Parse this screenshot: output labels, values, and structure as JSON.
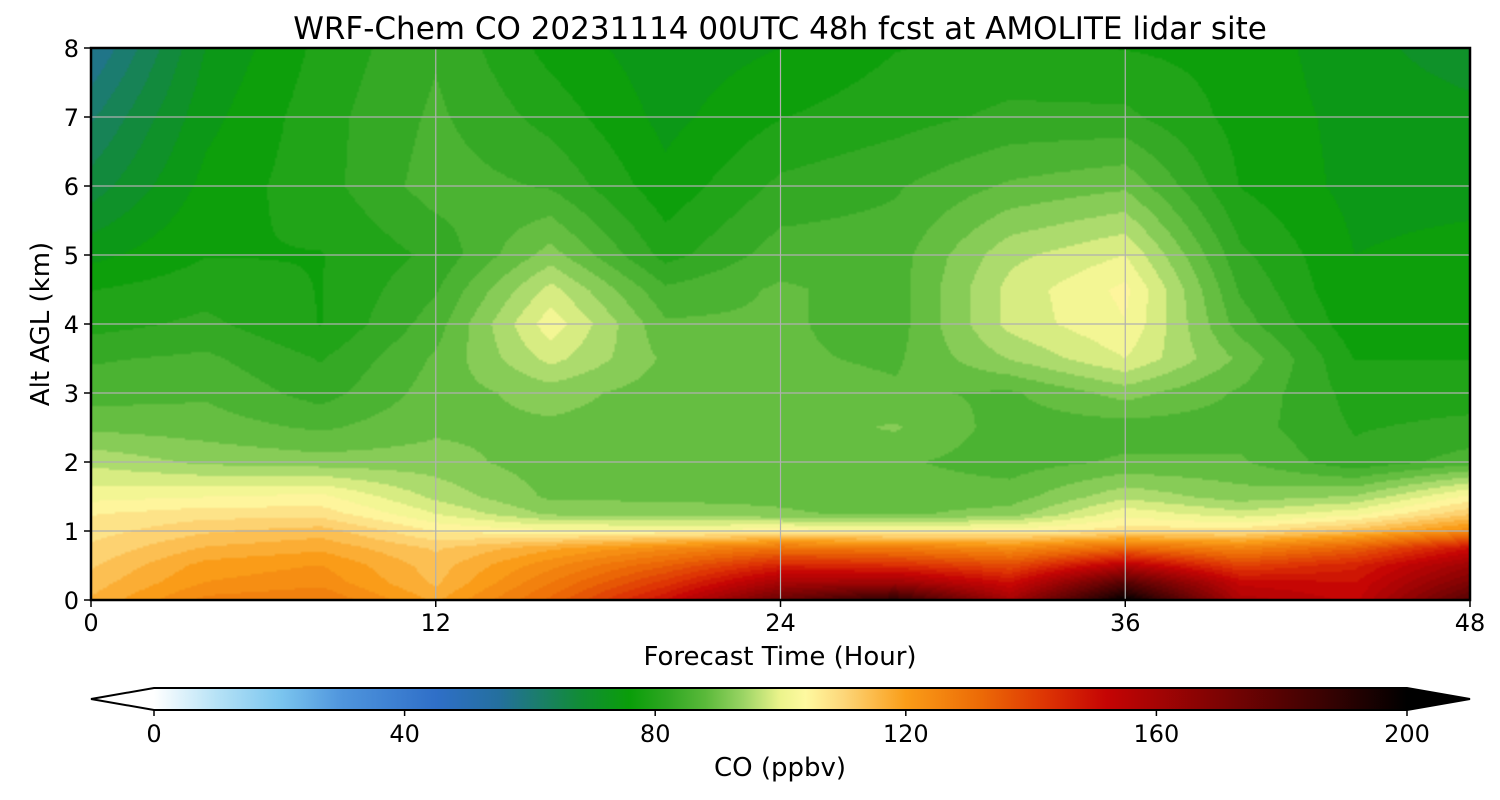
{
  "chart_data": {
    "type": "heatmap",
    "subtype": "filled-contour time-height cross-section",
    "title": "WRF-Chem CO  20231114 00UTC 48h fcst at AMOLITE lidar site",
    "xlabel": "Forecast Time (Hour)",
    "ylabel": "Alt AGL (km)",
    "xlim": [
      0,
      48
    ],
    "ylim": [
      0,
      8
    ],
    "xticks": [
      0,
      12,
      24,
      36,
      48
    ],
    "yticks": [
      0,
      1,
      2,
      3,
      4,
      5,
      6,
      7,
      8
    ],
    "grid": true,
    "z_hours": [
      0,
      4,
      8,
      12,
      16,
      20,
      24,
      28,
      32,
      36,
      40,
      44,
      48
    ],
    "z_altitudes_km": [
      0,
      0.25,
      0.5,
      0.75,
      1,
      1.25,
      1.5,
      2,
      2.5,
      3,
      3.5,
      4,
      4.5,
      5,
      6,
      7,
      8
    ],
    "z_values_ppbv": [
      [
        116,
        126,
        128,
        118,
        132,
        150,
        175,
        190,
        160,
        200,
        158,
        152,
        180
      ],
      [
        114,
        122,
        124,
        115,
        128,
        142,
        160,
        162,
        150,
        180,
        152,
        150,
        170
      ],
      [
        112,
        120,
        122,
        114,
        124,
        134,
        146,
        144,
        138,
        156,
        140,
        146,
        162
      ],
      [
        110,
        116,
        118,
        112,
        118,
        124,
        130,
        128,
        124,
        132,
        126,
        134,
        150
      ],
      [
        108,
        112,
        114,
        106,
        104,
        104,
        105,
        104,
        105,
        108,
        108,
        114,
        124
      ],
      [
        106,
        108,
        108,
        100,
        93,
        92,
        91,
        90,
        92,
        102,
        98,
        102,
        112
      ],
      [
        102,
        103,
        104,
        96,
        90,
        90,
        90,
        89,
        89,
        96,
        92,
        94,
        104
      ],
      [
        96,
        93,
        92,
        92,
        89,
        89,
        89,
        88,
        86,
        88,
        88,
        82,
        86
      ],
      [
        90,
        89,
        87,
        90,
        90,
        89,
        89,
        91,
        86,
        86,
        86,
        81,
        82
      ],
      [
        86,
        87,
        83,
        89,
        92,
        89,
        89,
        88,
        87,
        92,
        87,
        80,
        80
      ],
      [
        84,
        85,
        81,
        88,
        98,
        90,
        88,
        87,
        94,
        100,
        90,
        78,
        78
      ],
      [
        80,
        82,
        78,
        86,
        102,
        88,
        88,
        86,
        98,
        103,
        86,
        76,
        77
      ],
      [
        78,
        80,
        78,
        84,
        98,
        85,
        88,
        86,
        98,
        104,
        84,
        75,
        76
      ],
      [
        74,
        78,
        78,
        82,
        92,
        80,
        86,
        86,
        96,
        100,
        82,
        75,
        76
      ],
      [
        67,
        76,
        80,
        86,
        84,
        76,
        82,
        84,
        88,
        90,
        78,
        74,
        74
      ],
      [
        62,
        74,
        80,
        85,
        80,
        74,
        78,
        80,
        82,
        82,
        77,
        74,
        73
      ],
      [
        56,
        72,
        79,
        84,
        77,
        73,
        75,
        78,
        79,
        78,
        77,
        73,
        70
      ]
    ],
    "colorbar": {
      "label": "CO  (ppbv)",
      "min": 0,
      "max": 200,
      "ticks": [
        0,
        40,
        80,
        120,
        160,
        200
      ],
      "extend": "both",
      "orientation": "horizontal",
      "color_stops": [
        [
          0,
          "#ffffff"
        ],
        [
          10,
          "#b6e2f6"
        ],
        [
          20,
          "#7cc6ef"
        ],
        [
          30,
          "#4f95dd"
        ],
        [
          45,
          "#2f6fc8"
        ],
        [
          55,
          "#246f9e"
        ],
        [
          68,
          "#118c36"
        ],
        [
          76,
          "#0a9e09"
        ],
        [
          82,
          "#2fa722"
        ],
        [
          88,
          "#5ab93a"
        ],
        [
          94,
          "#9ad464"
        ],
        [
          100,
          "#ecf48c"
        ],
        [
          104,
          "#fef9a0"
        ],
        [
          110,
          "#fdd77a"
        ],
        [
          120,
          "#fa9d18"
        ],
        [
          132,
          "#ec6a06"
        ],
        [
          142,
          "#de3604"
        ],
        [
          152,
          "#c50404"
        ],
        [
          170,
          "#7d0303"
        ],
        [
          186,
          "#3d0202"
        ],
        [
          200,
          "#000000"
        ]
      ],
      "under_color": "#ffffff",
      "over_color": "#000000"
    }
  }
}
